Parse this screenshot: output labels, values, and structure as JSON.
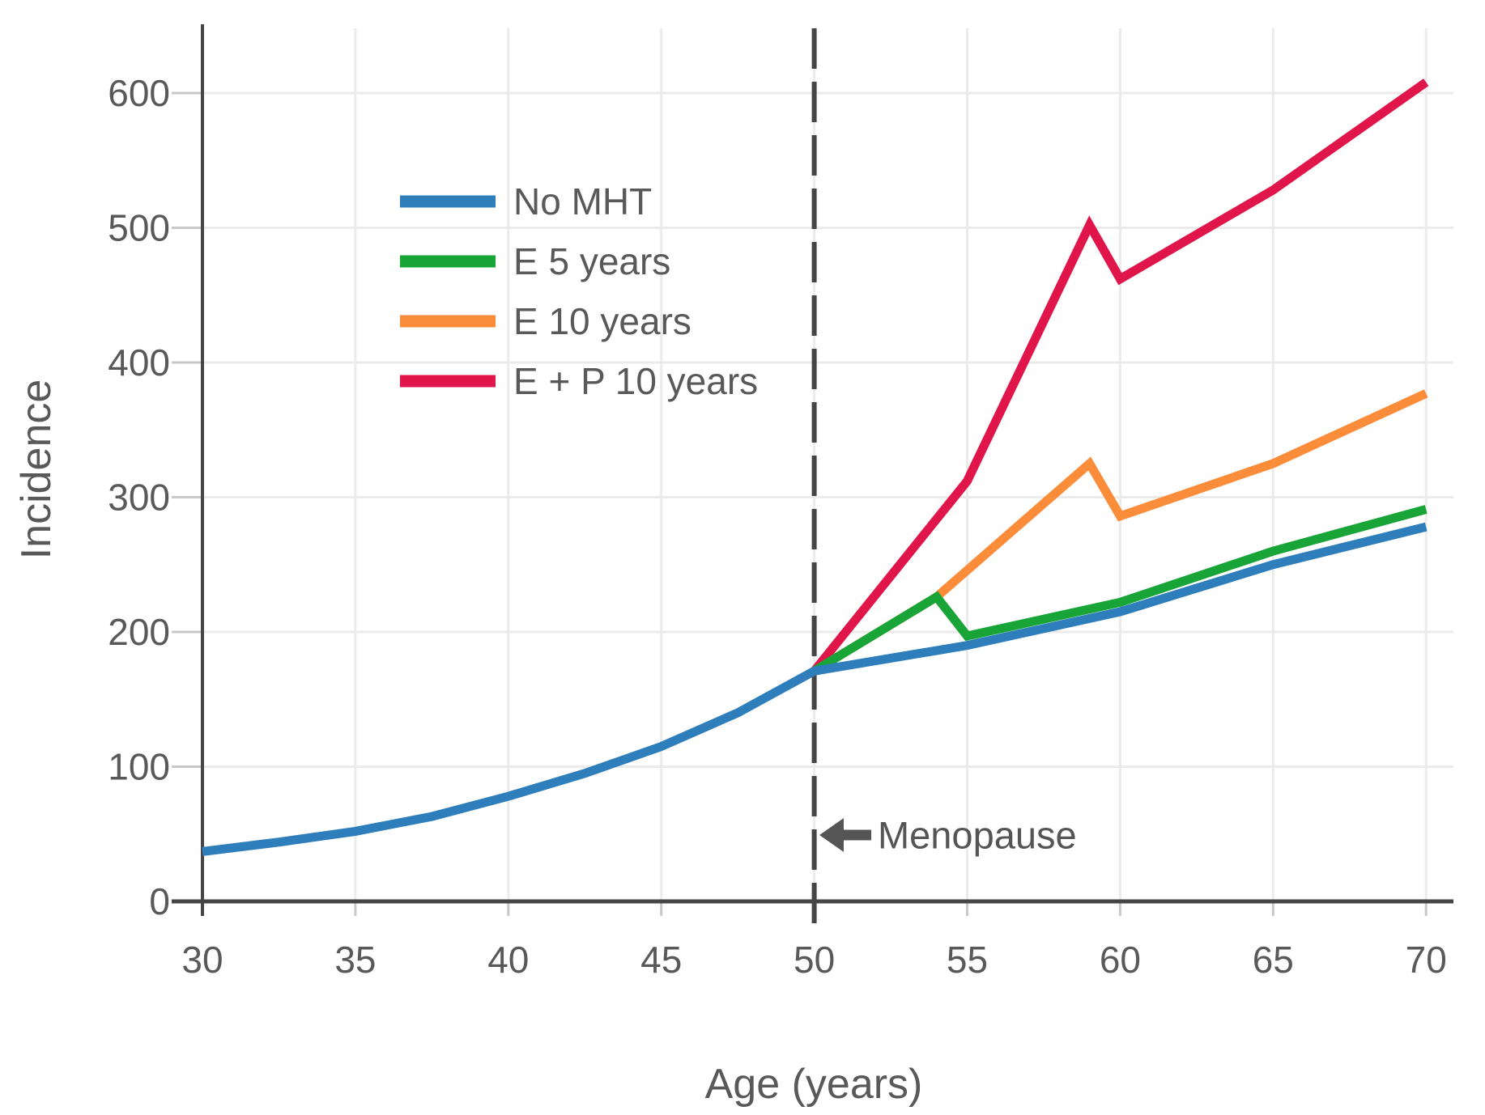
{
  "chart_data": {
    "type": "line",
    "title": "",
    "xlabel": "Age (years)",
    "ylabel": "Incidence",
    "xlim": [
      29,
      71
    ],
    "ylim": [
      0,
      650
    ],
    "xticks": [
      30,
      35,
      40,
      45,
      50,
      55,
      60,
      65,
      70
    ],
    "yticks": [
      0,
      100,
      200,
      300,
      400,
      500,
      600
    ],
    "grid": true,
    "legend_position": "upper-left-inside",
    "series": [
      {
        "name": "No MHT",
        "color": "#2e7ebc",
        "points": [
          [
            30,
            37
          ],
          [
            32.5,
            44
          ],
          [
            35,
            52
          ],
          [
            37.5,
            63
          ],
          [
            40,
            78
          ],
          [
            42.5,
            95
          ],
          [
            45,
            115
          ],
          [
            47.5,
            140
          ],
          [
            50,
            171
          ],
          [
            55,
            190
          ],
          [
            60,
            215
          ],
          [
            65,
            250
          ],
          [
            70,
            278
          ]
        ]
      },
      {
        "name": "E 5 years",
        "color": "#18a437",
        "points": [
          [
            50,
            171
          ],
          [
            54,
            226
          ],
          [
            55,
            197
          ],
          [
            60,
            222
          ],
          [
            65,
            260
          ],
          [
            70,
            291
          ]
        ]
      },
      {
        "name": "E 10 years",
        "color": "#fb8c3a",
        "points": [
          [
            50,
            171
          ],
          [
            54,
            226
          ],
          [
            59,
            325
          ],
          [
            60,
            286
          ],
          [
            65,
            325
          ],
          [
            70,
            377
          ]
        ]
      },
      {
        "name": "E + P 10 years",
        "color": "#e0154a",
        "points": [
          [
            50,
            171
          ],
          [
            55,
            312
          ],
          [
            59,
            502
          ],
          [
            60,
            462
          ],
          [
            65,
            528
          ],
          [
            70,
            608
          ]
        ]
      }
    ],
    "vline": {
      "x": 50,
      "style": "dashed",
      "color": "#454545"
    },
    "annotation": {
      "text": "Menopause",
      "x": 50.2,
      "y": 50,
      "arrow": "left",
      "color": "#555555"
    },
    "colors": {
      "grid": "#ebebeb",
      "axis": "#454545",
      "tick": "#c8c8c8",
      "text": "#595959"
    }
  }
}
